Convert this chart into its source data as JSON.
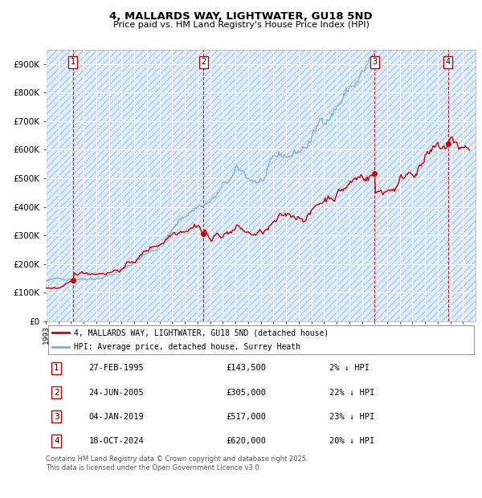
{
  "title1": "4, MALLARDS WAY, LIGHTWATER, GU18 5ND",
  "title2": "Price paid vs. HM Land Registry's House Price Index (HPI)",
  "ylim": [
    0,
    950000
  ],
  "yticks": [
    0,
    100000,
    200000,
    300000,
    400000,
    500000,
    600000,
    700000,
    800000,
    900000
  ],
  "ytick_labels": [
    "£0",
    "£100K",
    "£200K",
    "£300K",
    "£400K",
    "£500K",
    "£600K",
    "£700K",
    "£800K",
    "£900K"
  ],
  "xlim_start": 1993.0,
  "xlim_end": 2027.0,
  "plot_bg_color": "#ddeeff",
  "hpi_line_color": "#7ab0d4",
  "price_line_color": "#cc0000",
  "dashed_line_color": "#cc0000",
  "sale_dates": [
    1995.15,
    2005.48,
    2019.01,
    2024.8
  ],
  "sale_prices": [
    143500,
    305000,
    517000,
    620000
  ],
  "sale_labels": [
    "1",
    "2",
    "3",
    "4"
  ],
  "legend_label_price": "4, MALLARDS WAY, LIGHTWATER, GU18 5ND (detached house)",
  "legend_label_hpi": "HPI: Average price, detached house, Surrey Heath",
  "table_data": [
    [
      "1",
      "27-FEB-1995",
      "£143,500",
      "2% ↓ HPI"
    ],
    [
      "2",
      "24-JUN-2005",
      "£305,000",
      "22% ↓ HPI"
    ],
    [
      "3",
      "04-JAN-2019",
      "£517,000",
      "23% ↓ HPI"
    ],
    [
      "4",
      "18-OCT-2024",
      "£620,000",
      "20% ↓ HPI"
    ]
  ],
  "footer": "Contains HM Land Registry data © Crown copyright and database right 2025.\nThis data is licensed under the Open Government Licence v3.0."
}
